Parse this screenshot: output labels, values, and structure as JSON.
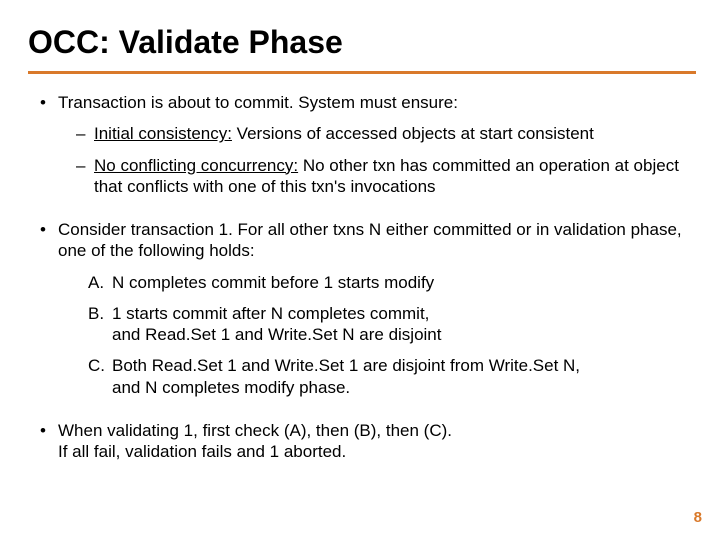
{
  "title": "OCC:  Validate Phase",
  "accent_color": "#d9792a",
  "page_number": "8",
  "bullets": [
    {
      "text": "Transaction is about to commit.  System must ensure:",
      "subs": [
        {
          "label": "Initial consistency:",
          "rest": " Versions of accessed objects at start consistent"
        },
        {
          "label": "No conflicting concurrency:",
          "rest": "  No other txn has committed an operation at object that conflicts with one of this txn's invocations"
        }
      ]
    },
    {
      "text": "Consider transaction 1.  For all other txns N either committed or in validation phase, one of the following holds:",
      "abc": [
        "N completes commit before 1 starts modify",
        "1 starts commit after N completes commit,\nand Read.Set 1 and Write.Set N are disjoint",
        "Both Read.Set 1 and Write.Set 1 are disjoint from Write.Set N,\nand N completes modify phase."
      ]
    },
    {
      "text": "When validating 1, first check (A), then (B), then (C).\nIf all fail, validation fails and 1 aborted."
    }
  ]
}
